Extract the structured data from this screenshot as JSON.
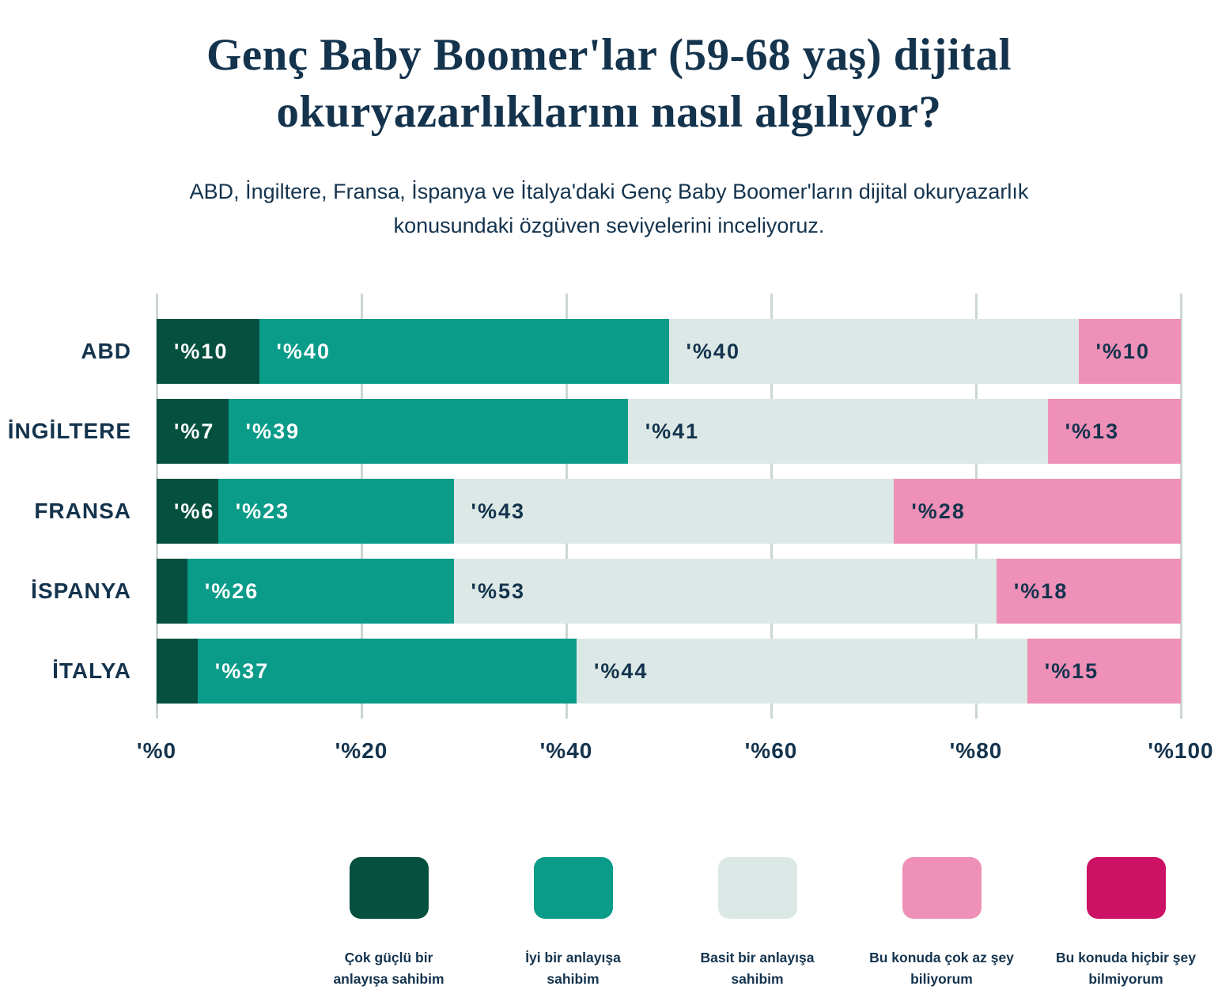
{
  "page": {
    "title": "Genç Baby Boomer'lar (59-68 yaş) dijital okuryazarlıklarını nasıl algılıyor?",
    "subtitle": "ABD, İngiltere, Fransa, İspanya ve İtalya'daki Genç Baby Boomer'ların dijital okuryazarlık konusundaki özgüven seviyelerini inceliyoruz."
  },
  "colors": {
    "background": "#ffffff",
    "text_navy": "#14334d",
    "gridline": "#ccd6d4",
    "label_on_dark": "#ffffff",
    "label_on_light": "#14334d"
  },
  "chart_data": {
    "type": "bar",
    "orientation": "horizontal",
    "stacked": true,
    "grid": true,
    "categories": [
      "ABD",
      "İNGİLTERE",
      "FRANSA",
      "İSPANYA",
      "İTALYA"
    ],
    "series": [
      {
        "name": "Çok güçlü bir anlayışa sahibim",
        "color": "#06503f",
        "label_color": "#ffffff",
        "values": [
          10,
          7,
          6,
          3,
          4
        ],
        "labels": [
          "'%10",
          "'%7",
          "'%6",
          "",
          ""
        ]
      },
      {
        "name": "İyi bir anlayışa sahibim",
        "color": "#0a9b89",
        "label_color": "#ffffff",
        "values": [
          40,
          39,
          23,
          26,
          37
        ],
        "labels": [
          "'%40",
          "'%39",
          "'%23",
          "'%26",
          "'%37"
        ]
      },
      {
        "name": "Basit bir anlayışa sahibim",
        "color": "#dce8e6",
        "label_color": "#14334d",
        "values": [
          40,
          41,
          43,
          53,
          44
        ],
        "labels": [
          "'%40",
          "'%41",
          "'%43",
          "'%53",
          "'%44"
        ]
      },
      {
        "name": "Bu konuda çok az şey biliyorum",
        "color": "#ee90b8",
        "label_color": "#14334d",
        "values": [
          10,
          13,
          28,
          18,
          15
        ],
        "labels": [
          "'%10",
          "'%13",
          "'%28",
          "'%18",
          "'%15"
        ]
      },
      {
        "name": "Bu konuda hiçbir şey bilmiyorum",
        "color": "#cd1164",
        "label_color": "#ffffff",
        "values": [
          0,
          0,
          0,
          0,
          0
        ],
        "labels": [
          "",
          "",
          "",
          "",
          ""
        ]
      }
    ],
    "x_axis": {
      "range": [
        0,
        100
      ],
      "tick_values": [
        0,
        20,
        40,
        60,
        80,
        100
      ],
      "tick_labels": [
        "'%0",
        "'%20",
        "'%40",
        "'%60",
        "'%80",
        "'%100"
      ]
    },
    "legend_position": "bottom",
    "legend": [
      {
        "label": "Çok güçlü bir anlayışa sahibim",
        "color": "#06503f"
      },
      {
        "label": "İyi bir anlayışa sahibim",
        "color": "#0a9b89"
      },
      {
        "label": "Basit bir anlayışa sahibim",
        "color": "#dce8e6"
      },
      {
        "label": "Bu konuda çok az şey biliyorum",
        "color": "#ee90b8"
      },
      {
        "label": "Bu konuda hiçbir şey bilmiyorum",
        "color": "#cd1164"
      }
    ]
  }
}
